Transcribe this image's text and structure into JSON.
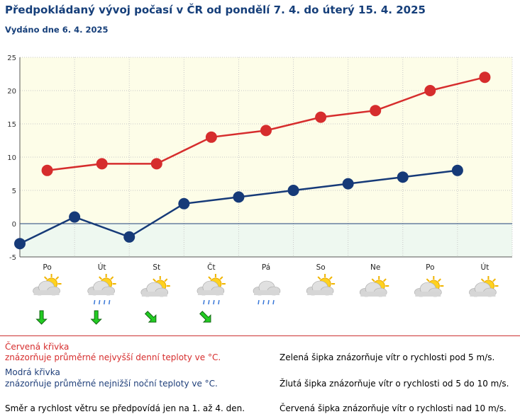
{
  "header": {
    "title": "Předpokládaný vývoj počasí v ČR od pondělí 7. 4. do úterý 15. 4. 2025",
    "issued": "Vydáno dne 6. 4. 2025"
  },
  "chart_data": {
    "type": "line",
    "title": "",
    "xlabel": "",
    "ylabel": "",
    "ylim": [
      -5,
      25
    ],
    "yticks": [
      -5,
      0,
      5,
      10,
      15,
      20,
      25
    ],
    "grid": true,
    "day_labels": [
      "Po",
      "Út",
      "St",
      "Čt",
      "Pá",
      "So",
      "Ne",
      "Po",
      "Út"
    ],
    "series": [
      {
        "key": "max",
        "color": "#d62d2d",
        "values": [
          8,
          9,
          9,
          13,
          14,
          16,
          17,
          20,
          22
        ]
      },
      {
        "key": "min",
        "color": "#163a78",
        "values": [
          -3,
          1,
          -2,
          3,
          4,
          5,
          6,
          7,
          8
        ]
      }
    ],
    "weather_icons": [
      "partly-cloudy-icon",
      "partly-cloudy-rain-icon",
      "sun-cloud-icon",
      "partly-cloudy-rain-icon",
      "cloudy-rain-icon",
      "partly-cloudy-icon",
      "sun-cloud-icon",
      "sun-cloud-icon",
      "sun-cloud-icon"
    ],
    "wind_arrows": [
      {
        "day": 0,
        "direction": "south",
        "speed_class": "pod 5 m/s",
        "color": "#22cc22"
      },
      {
        "day": 1,
        "direction": "south",
        "speed_class": "pod 5 m/s",
        "color": "#22cc22"
      },
      {
        "day": 2,
        "direction": "southeast",
        "speed_class": "pod 5 m/s",
        "color": "#22cc22"
      },
      {
        "day": 3,
        "direction": "southeast",
        "speed_class": "pod 5 m/s",
        "color": "#22cc22"
      }
    ]
  },
  "legend": {
    "red_title": "Červená křivka",
    "red_desc": "znázorňuje průměrné nejvyšší denní teploty ve °C.",
    "blue_title": "Modrá křivka",
    "blue_desc": "znázorňuje průměrné nejnižší noční teploty ve °C.",
    "wind_note": "Směr a rychlost větru se předpovídá jen na 1. až 4. den.",
    "green_arrow": "Zelená šipka znázorňuje vítr o rychlosti pod 5 m/s.",
    "yellow_arrow": "Žlutá šipka znázorňuje vítr o rychlosti od 5 do 10 m/s.",
    "red_arrow": "Červená šipka znázorňuje vítr o rychlosti nad 10 m/s."
  }
}
